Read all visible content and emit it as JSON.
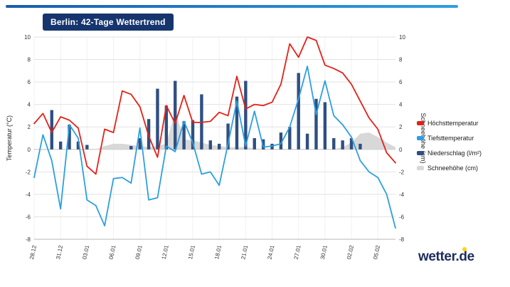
{
  "header": {
    "title": "Berlin: 42-Tage Wettertrend"
  },
  "branding": {
    "logo_text": "wetter.de"
  },
  "colors": {
    "accent_bar_start": "#1a5dad",
    "accent_bar_end": "#2da0e0",
    "title_bg": "#16356e",
    "logo_color": "#1d2d5c",
    "logo_dot": "#ffd500",
    "grid": "#e2e2e2",
    "zero_line": "#c0c0c0"
  },
  "chart_data": {
    "type": "line",
    "title": "Berlin: 42-Tage Wettertrend",
    "ylabel_left": "Temperatur (°C)",
    "ylabel_right": "Schneehöhe (cm)",
    "ylim": [
      -8,
      10
    ],
    "y_ticks": [
      -8,
      -6,
      -4,
      -2,
      0,
      2,
      4,
      6,
      8,
      10
    ],
    "grid": true,
    "legend_position": "right",
    "x_tick_labels": [
      "28.12",
      "31.12",
      "03.01",
      "06.01",
      "09.01",
      "12.01",
      "15.01",
      "18.01",
      "21.01",
      "24.01",
      "27.01",
      "30.01",
      "02.02",
      "05.02"
    ],
    "x_tick_indices": [
      0,
      3,
      6,
      9,
      12,
      15,
      18,
      21,
      24,
      27,
      30,
      33,
      36,
      39
    ],
    "categories": [
      "28.12",
      "29.12",
      "30.12",
      "31.12",
      "01.01",
      "02.01",
      "03.01",
      "04.01",
      "05.01",
      "06.01",
      "07.01",
      "08.01",
      "09.01",
      "10.01",
      "11.01",
      "12.01",
      "13.01",
      "14.01",
      "15.01",
      "16.01",
      "17.01",
      "18.01",
      "19.01",
      "20.01",
      "21.01",
      "22.01",
      "23.01",
      "24.01",
      "25.01",
      "26.01",
      "27.01",
      "28.01",
      "29.01",
      "30.01",
      "31.01",
      "01.02",
      "02.02",
      "03.02",
      "04.02",
      "05.02",
      "06.02",
      "07.02"
    ],
    "series": [
      {
        "name": "Höchsttemperatur",
        "type": "line",
        "color": "#e32119",
        "values": [
          2.3,
          3.2,
          1.5,
          2.9,
          2.6,
          1.9,
          -1.5,
          -2.2,
          1.8,
          1.5,
          5.2,
          4.9,
          3.8,
          1.2,
          -0.7,
          3.9,
          2.3,
          4.8,
          2.4,
          2.4,
          2.5,
          3.3,
          3.0,
          6.5,
          3.6,
          4.0,
          3.9,
          4.2,
          5.8,
          9.4,
          8.2,
          10.0,
          9.7,
          7.5,
          7.2,
          6.8,
          5.8,
          4.3,
          2.8,
          1.8,
          -0.3,
          -1.2
        ]
      },
      {
        "name": "Tiefsttemperatur",
        "type": "line",
        "color": "#2d9fe0",
        "values": [
          -2.5,
          1.3,
          -1.0,
          -5.3,
          2.2,
          1.0,
          -4.5,
          -5.0,
          -6.8,
          -2.6,
          -2.5,
          -3.0,
          1.9,
          -4.5,
          -4.3,
          0.3,
          -0.2,
          2.5,
          0.6,
          -2.2,
          -2.0,
          -3.2,
          0.5,
          4.3,
          0.3,
          3.4,
          0.2,
          0.3,
          0.5,
          2.0,
          4.5,
          7.4,
          3.1,
          6.1,
          3.0,
          2.2,
          1.1,
          -1.0,
          -2.0,
          -2.5,
          -4.0,
          -7.0
        ]
      },
      {
        "name": "Niederschlag (l/m²)",
        "type": "bar",
        "color": "#2f4f80",
        "values": [
          0,
          0,
          3.5,
          0.7,
          2.2,
          0.7,
          0.4,
          0,
          0,
          0,
          0,
          0.3,
          1.0,
          2.7,
          5.4,
          3.9,
          6.1,
          2.5,
          2.6,
          4.9,
          0.8,
          0.5,
          2.3,
          4.7,
          6.1,
          1.0,
          0.9,
          0.5,
          1.5,
          2.0,
          6.8,
          1.4,
          4.5,
          4.2,
          1.0,
          0.8,
          1.0,
          0.5,
          0,
          0,
          0,
          0
        ]
      },
      {
        "name": "Schneehöhe (cm)",
        "type": "area",
        "color": "#d8d8d8",
        "values": [
          0,
          0,
          0,
          0,
          0,
          0,
          0,
          0,
          0.3,
          0.5,
          0.5,
          0.4,
          0.3,
          0.2,
          0.3,
          0.5,
          3.4,
          0.9,
          0.8,
          0.6,
          0.4,
          0.3,
          0.2,
          0.2,
          0.2,
          0.1,
          0,
          0,
          0,
          0,
          0,
          0,
          0,
          0,
          0,
          0.2,
          0.6,
          1.4,
          1.5,
          1.1,
          0.6,
          0.2
        ]
      }
    ]
  }
}
